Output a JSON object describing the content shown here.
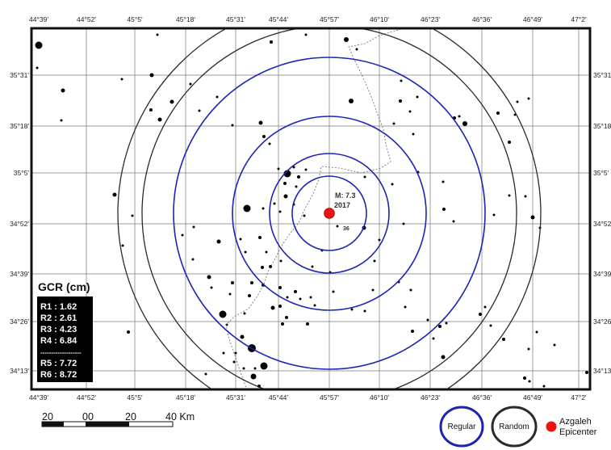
{
  "map": {
    "top_ticks": [
      "44°39'",
      "44°52'",
      "45°5'",
      "45°18'",
      "45°31'",
      "45°44'",
      "45°57'",
      "46°10'",
      "46°23'",
      "46°36'",
      "46°49'",
      "47°2'"
    ],
    "bottom_ticks": [
      "44°39'",
      "44°52'",
      "45°5'",
      "45°18'",
      "45°31'",
      "45°44'",
      "45°57'",
      "46°10'",
      "46°23'",
      "46°36'",
      "46°49'",
      "47°2'"
    ],
    "left_ticks": [
      "35°31'",
      "35°18'",
      "35°5'",
      "34°52'",
      "34°39'",
      "34°26'",
      "34°13'"
    ],
    "right_ticks": [
      "35°31'",
      "35°18'",
      "35°5'",
      "34°52'",
      "34°39'",
      "34°26'",
      "34°13'"
    ],
    "epicenter": {
      "magnitude_label": "M: 7.3",
      "year_label": "2017",
      "color": "#ee1111"
    },
    "small_label": "36",
    "ring_colors": {
      "regular": "#1c24b4",
      "random": "#2a2a2a"
    }
  },
  "gcr_legend": {
    "title": "GCR (cm)",
    "regular_rows": [
      "R1 : 1.62",
      "R2 : 2.61",
      "R3 : 4.23",
      "R4 : 6.84"
    ],
    "separator": "-------------------",
    "random_rows": [
      "R5 : 7.72",
      "R6 : 8.72"
    ]
  },
  "scale_bar": {
    "labels": [
      "20",
      "00",
      "20",
      "40 Km"
    ]
  },
  "legend": {
    "regular_label": "Regular",
    "random_label": "Random",
    "epicenter_label_1": "Azgaleh",
    "epicenter_label_2": "Epicenter"
  }
}
